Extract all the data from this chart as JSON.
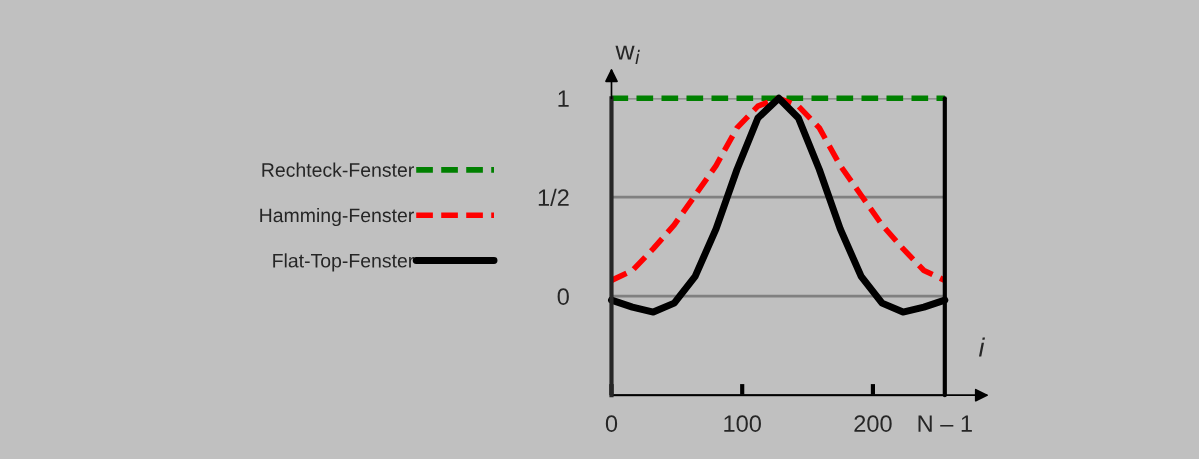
{
  "chart_data": {
    "type": "line",
    "xlabel": "i",
    "ylabel": "w$_{i}$",
    "x": [
      0,
      16,
      32,
      48,
      64,
      80,
      96,
      112,
      128,
      143,
      159,
      175,
      191,
      207,
      223,
      239,
      255
    ],
    "series": [
      {
        "name": "Rechteck-Fenster",
        "color": "#008000",
        "line_style": "dashed",
        "values": [
          1,
          1,
          1,
          1,
          1,
          1,
          1,
          1,
          1,
          1,
          1,
          1,
          1,
          1,
          1,
          1,
          1
        ]
      },
      {
        "name": "Hamming-Fenster",
        "color": "#ff0000",
        "line_style": "dashed",
        "values": [
          0.08,
          0.13,
          0.24,
          0.36,
          0.51,
          0.66,
          0.85,
          0.96,
          1.0,
          0.96,
          0.85,
          0.66,
          0.51,
          0.36,
          0.24,
          0.13,
          0.08
        ]
      },
      {
        "name": "Flat-Top-Fenster",
        "color": "#000000",
        "line_style": "solid",
        "values": [
          -0.02,
          -0.055,
          -0.08,
          -0.035,
          0.1,
          0.34,
          0.64,
          0.9,
          1.0,
          0.9,
          0.64,
          0.34,
          0.1,
          -0.035,
          -0.08,
          -0.055,
          -0.02
        ]
      }
    ],
    "xlim": [
      0,
      255
    ],
    "ylim": [
      -0.5,
      1
    ],
    "xticks": [
      0,
      100,
      200
    ],
    "ref_lines": [
      {
        "axis": "x",
        "value": 255,
        "label": "N – 1",
        "color": "#000000"
      }
    ],
    "yticks": [
      0,
      {
        "value": 0.5,
        "label": "1/2"
      },
      1
    ],
    "grid": "y",
    "legend": "left"
  }
}
